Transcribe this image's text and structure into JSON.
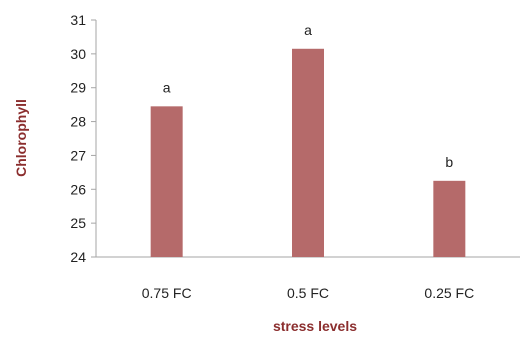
{
  "chart_data": {
    "type": "bar",
    "categories": [
      "0.75 FC",
      "0.5 FC",
      "0.25 FC"
    ],
    "values": [
      28.45,
      30.15,
      26.25
    ],
    "data_labels": [
      "a",
      "a",
      "b"
    ],
    "title": "",
    "xlabel": "stress levels",
    "ylabel": "Chlorophyll",
    "ylim": [
      24,
      31
    ],
    "yticks": [
      "24",
      "25",
      "26",
      "27",
      "28",
      "29",
      "30",
      "31"
    ],
    "grid": false,
    "legend": "none",
    "bar_color": "#b56a6a",
    "title_color": "#8b2e2e"
  }
}
